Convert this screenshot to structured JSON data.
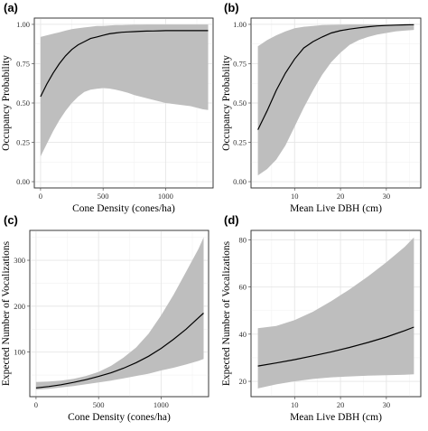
{
  "chart_data": [
    {
      "panel": "(a)",
      "type": "line",
      "xlabel": "Cone Density (cones/ha)",
      "ylabel": "Occupancy Probability",
      "xlim": [
        -50,
        1380
      ],
      "ylim": [
        -0.04,
        1.04
      ],
      "xticks": [
        0,
        500,
        1000
      ],
      "xtick_labels": [
        "0",
        "500",
        "1000"
      ],
      "yticks": [
        0,
        0.25,
        0.5,
        0.75,
        1.0
      ],
      "ytick_labels": [
        "0.00",
        "0.25",
        "0.50",
        "0.75",
        "1.00"
      ],
      "grid": true,
      "x": [
        0,
        50,
        100,
        150,
        200,
        250,
        300,
        350,
        400,
        450,
        500,
        550,
        600,
        650,
        700,
        750,
        800,
        850,
        900,
        950,
        1000,
        1050,
        1100,
        1150,
        1200,
        1250,
        1300,
        1340
      ],
      "y": [
        0.54,
        0.62,
        0.69,
        0.75,
        0.8,
        0.84,
        0.87,
        0.89,
        0.91,
        0.92,
        0.93,
        0.94,
        0.945,
        0.95,
        0.952,
        0.954,
        0.956,
        0.957,
        0.958,
        0.959,
        0.96,
        0.96,
        0.96,
        0.96,
        0.96,
        0.96,
        0.96,
        0.96
      ],
      "lower": [
        0.16,
        0.24,
        0.32,
        0.39,
        0.45,
        0.5,
        0.54,
        0.57,
        0.585,
        0.59,
        0.595,
        0.592,
        0.585,
        0.575,
        0.565,
        0.55,
        0.54,
        0.53,
        0.52,
        0.51,
        0.5,
        0.495,
        0.49,
        0.485,
        0.48,
        0.47,
        0.46,
        0.455
      ],
      "upper": [
        0.92,
        0.93,
        0.94,
        0.95,
        0.96,
        0.97,
        0.975,
        0.98,
        0.985,
        0.99,
        0.99,
        0.993,
        0.995,
        0.996,
        0.997,
        0.998,
        0.998,
        0.999,
        0.999,
        0.999,
        0.999,
        0.999,
        0.999,
        0.999,
        0.999,
        0.999,
        0.999,
        0.999
      ]
    },
    {
      "panel": "(b)",
      "type": "line",
      "xlabel": "Mean Live DBH (cm)",
      "ylabel": "Occupancy Probability",
      "xlim": [
        0.5,
        37.5
      ],
      "ylim": [
        -0.04,
        1.04
      ],
      "xticks": [
        10,
        20,
        30
      ],
      "xtick_labels": [
        "10",
        "20",
        "30"
      ],
      "yticks": [
        0,
        0.25,
        0.5,
        0.75,
        1.0
      ],
      "ytick_labels": [
        "0.00",
        "0.25",
        "0.50",
        "0.75",
        "1.00"
      ],
      "grid": true,
      "x": [
        2,
        4,
        6,
        8,
        10,
        12,
        14,
        16,
        18,
        20,
        22,
        24,
        26,
        28,
        30,
        32,
        34,
        36
      ],
      "y": [
        0.33,
        0.45,
        0.58,
        0.69,
        0.78,
        0.85,
        0.89,
        0.92,
        0.945,
        0.96,
        0.97,
        0.978,
        0.985,
        0.99,
        0.993,
        0.995,
        0.997,
        0.998
      ],
      "lower": [
        0.04,
        0.08,
        0.14,
        0.23,
        0.35,
        0.47,
        0.58,
        0.68,
        0.76,
        0.82,
        0.87,
        0.9,
        0.92,
        0.935,
        0.945,
        0.955,
        0.96,
        0.965
      ],
      "upper": [
        0.86,
        0.9,
        0.93,
        0.955,
        0.975,
        0.985,
        0.99,
        0.995,
        0.997,
        0.998,
        0.999,
        0.999,
        0.999,
        0.999,
        0.999,
        0.999,
        0.999,
        0.999
      ]
    },
    {
      "panel": "(c)",
      "type": "line",
      "xlabel": "Cone Density (cones/ha)",
      "ylabel": "Expected Number of Vocalizations",
      "xlim": [
        -50,
        1380
      ],
      "ylim": [
        3,
        365
      ],
      "xticks": [
        0,
        500,
        1000
      ],
      "xtick_labels": [
        "0",
        "500",
        "1000"
      ],
      "yticks": [
        100,
        200,
        300
      ],
      "ytick_labels": [
        "100",
        "200",
        "300"
      ],
      "grid": true,
      "x": [
        0,
        100,
        200,
        300,
        400,
        500,
        600,
        700,
        800,
        900,
        1000,
        1100,
        1200,
        1300,
        1340
      ],
      "y": [
        22,
        25,
        29,
        34,
        40,
        47,
        55,
        65,
        77,
        91,
        108,
        128,
        150,
        175,
        185
      ],
      "lower": [
        18,
        20,
        23,
        26,
        30,
        34,
        38,
        43,
        48,
        53,
        60,
        66,
        73,
        81,
        85
      ],
      "upper": [
        35,
        36,
        38,
        42,
        48,
        57,
        70,
        88,
        110,
        140,
        180,
        225,
        275,
        325,
        350
      ]
    },
    {
      "panel": "(d)",
      "type": "line",
      "xlabel": "Mean Live DBH (cm)",
      "ylabel": "Expected Number of Vocalizations",
      "xlim": [
        0.5,
        37.5
      ],
      "ylim": [
        13.5,
        84
      ],
      "xticks": [
        10,
        20,
        30
      ],
      "xtick_labels": [
        "10",
        "20",
        "30"
      ],
      "yticks": [
        20,
        40,
        60,
        80
      ],
      "ytick_labels": [
        "20",
        "40",
        "60",
        "80"
      ],
      "grid": true,
      "x": [
        2,
        6,
        10,
        14,
        18,
        22,
        26,
        30,
        34,
        36
      ],
      "y": [
        26.5,
        27.8,
        29.2,
        30.8,
        32.5,
        34.4,
        36.5,
        38.8,
        41.5,
        43
      ],
      "lower": [
        17,
        18.7,
        20,
        21,
        21.7,
        22.1,
        22.4,
        22.6,
        22.8,
        23
      ],
      "upper": [
        42.5,
        43.5,
        46,
        49.5,
        54,
        59,
        64.5,
        70.5,
        77,
        81
      ]
    }
  ]
}
